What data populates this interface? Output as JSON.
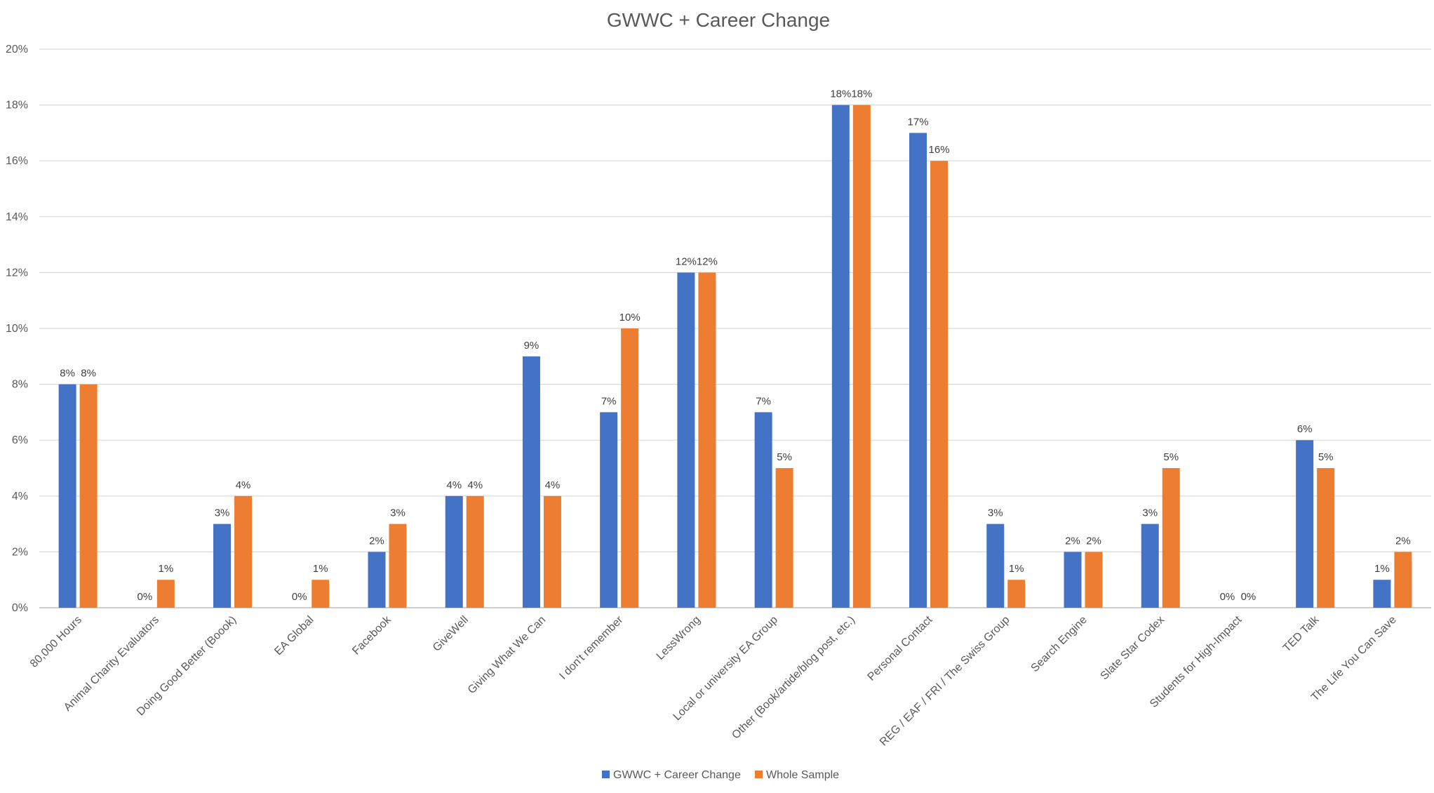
{
  "chart_data": {
    "type": "bar",
    "title": "GWWC + Career Change",
    "xlabel": "",
    "ylabel": "",
    "ylim": [
      0,
      20
    ],
    "yticks": [
      "0%",
      "2%",
      "4%",
      "6%",
      "8%",
      "10%",
      "12%",
      "14%",
      "16%",
      "18%",
      "20%"
    ],
    "grid": true,
    "legend": "bottom",
    "categories": [
      "80,000 Hours",
      "Animal Charity Evaluators",
      "Doing Good Better (Boook)",
      "EA Global",
      "Facebook",
      "GiveWell",
      "Giving What We Can",
      "I don't remember",
      "LessWrong",
      "Local or university EA Group",
      "Other (Book/artide/blog post, etc.)",
      "Personal Contact",
      "REG / EAF / FRI / The Swiss Group",
      "Search Engine",
      "Slate Star Codex",
      "Students for High-Impact",
      "TED Talk",
      "The Life You Can Save"
    ],
    "series": [
      {
        "name": "GWWC + Career Change",
        "color": "#4472c4",
        "values": [
          8,
          0,
          3,
          0,
          2,
          4,
          9,
          7,
          12,
          7,
          18,
          17,
          3,
          2,
          3,
          0,
          6,
          1
        ],
        "labels": [
          "8%",
          "0%",
          "3%",
          "0%",
          "2%",
          "4%",
          "9%",
          "7%",
          "12%",
          "7%",
          "18%",
          "17%",
          "3%",
          "2%",
          "3%",
          "0%",
          "6%",
          "1%"
        ]
      },
      {
        "name": "Whole Sample",
        "color": "#ed7d31",
        "values": [
          8,
          1,
          4,
          1,
          3,
          4,
          4,
          10,
          12,
          5,
          18,
          16,
          1,
          2,
          5,
          0,
          5,
          2
        ],
        "labels": [
          "8%",
          "1%",
          "4%",
          "1%",
          "3%",
          "4%",
          "4%",
          "10%",
          "12%",
          "5%",
          "18%",
          "16%",
          "1%",
          "2%",
          "5%",
          "0%",
          "5%",
          "2%"
        ]
      }
    ]
  }
}
